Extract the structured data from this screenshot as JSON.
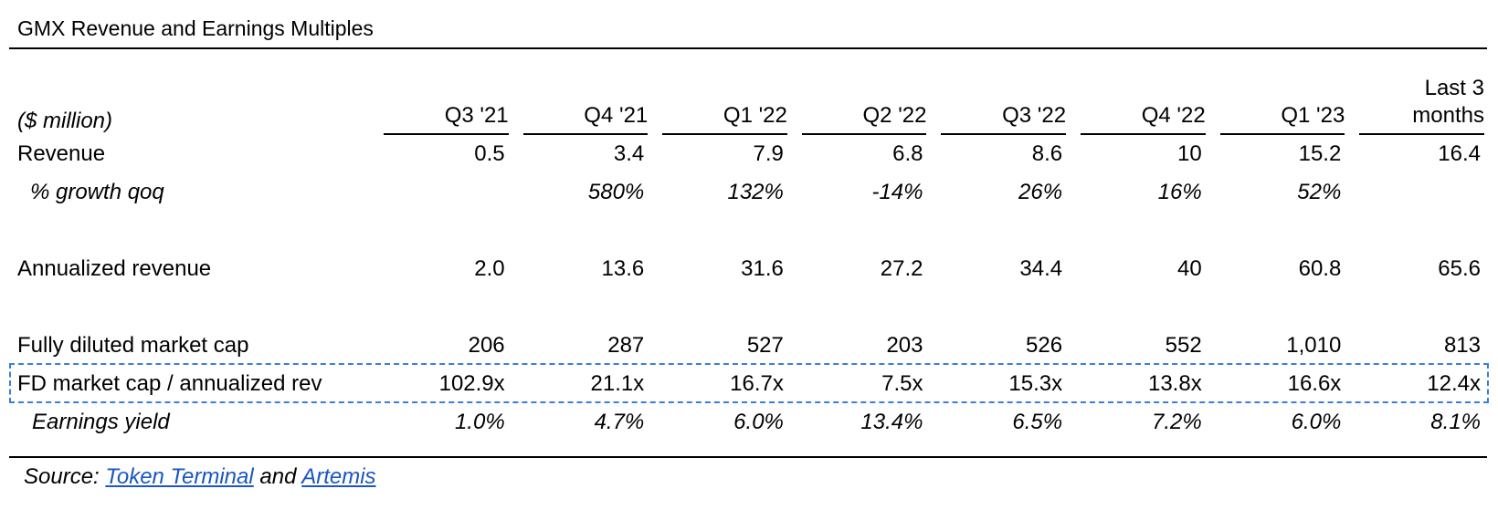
{
  "title": "GMX Revenue and Earnings Multiples",
  "table": {
    "unit_label": "($ million)",
    "columns": [
      "Q3 '21",
      "Q4 '21",
      "Q1 '22",
      "Q2 '22",
      "Q3 '22",
      "Q4 '22",
      "Q1 '23"
    ],
    "last_col_line1": "Last 3",
    "last_col_line2": "months",
    "rows": {
      "revenue": {
        "label": "Revenue",
        "values": [
          "0.5",
          "3.4",
          "7.9",
          "6.8",
          "8.6",
          "10",
          "15.2",
          "16.4"
        ]
      },
      "growth": {
        "label": "% growth qoq",
        "values": [
          "",
          "580%",
          "132%",
          "-14%",
          "26%",
          "16%",
          "52%",
          ""
        ]
      },
      "annualized": {
        "label": "Annualized revenue",
        "values": [
          "2.0",
          "13.6",
          "31.6",
          "27.2",
          "34.4",
          "40",
          "60.8",
          "65.6"
        ]
      },
      "mcap": {
        "label": "Fully diluted market cap",
        "values": [
          "206",
          "287",
          "527",
          "203",
          "526",
          "552",
          "1,010",
          "813"
        ]
      },
      "multiple": {
        "label": "FD market cap / annualized rev",
        "values": [
          "102.9x",
          "21.1x",
          "16.7x",
          "7.5x",
          "15.3x",
          "13.8x",
          "16.6x",
          "12.4x"
        ]
      },
      "yield": {
        "label": "Earnings yield",
        "values": [
          "1.0%",
          "4.7%",
          "6.0%",
          "13.4%",
          "6.5%",
          "7.2%",
          "6.0%",
          "8.1%"
        ]
      }
    }
  },
  "source": {
    "prefix": "Source: ",
    "link1": "Token Terminal",
    "middle": " and ",
    "link2": "Artemis"
  },
  "colors": {
    "link": "#1a56c4",
    "selection": "#3b7ddd"
  }
}
